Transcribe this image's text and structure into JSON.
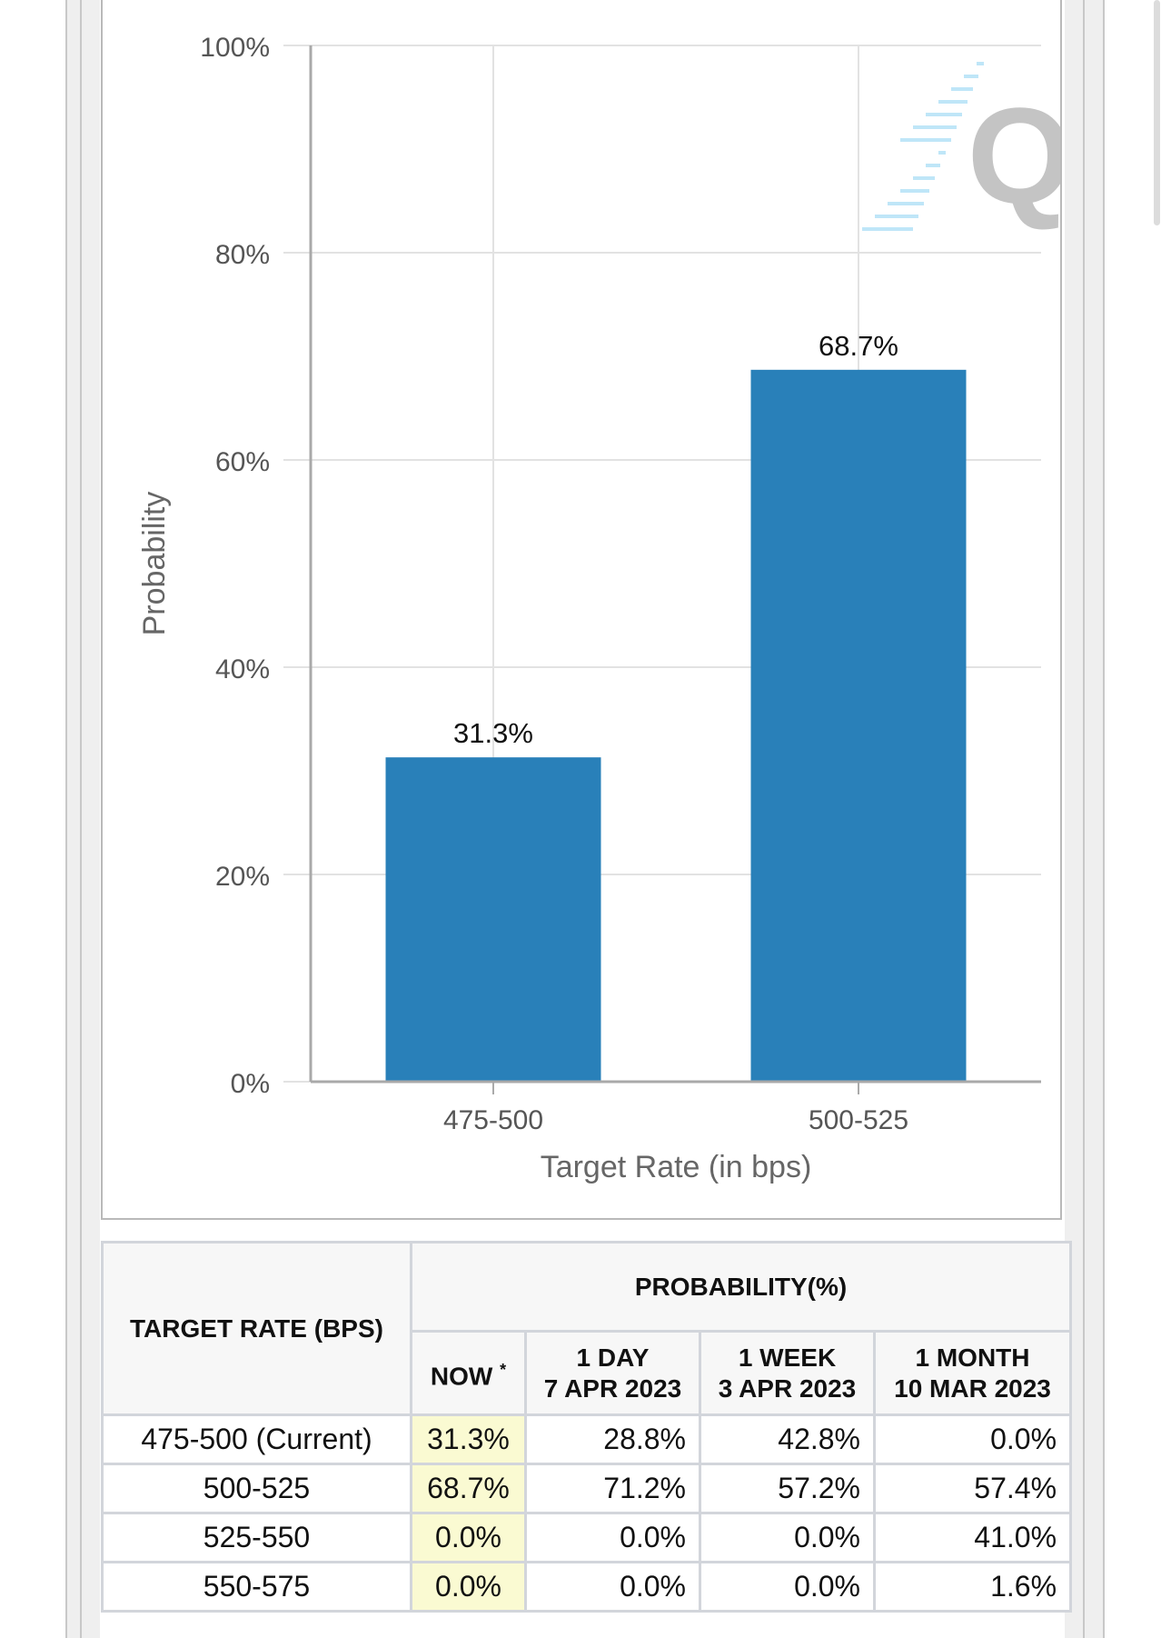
{
  "chart_data": {
    "type": "bar",
    "categories": [
      "475-500",
      "500-525"
    ],
    "values": [
      31.3,
      68.7
    ],
    "data_labels": [
      "31.3%",
      "68.7%"
    ],
    "xlabel": "Target Rate (in bps)",
    "ylabel": "Probability",
    "ylim": [
      0,
      100
    ],
    "yticks": [
      0,
      20,
      40,
      60,
      80,
      100
    ],
    "ytick_labels": [
      "0%",
      "20%",
      "40%",
      "60%",
      "80%",
      "100%"
    ],
    "grid": true,
    "legend": "none",
    "bar_color": "#2980b9",
    "watermark_icon": "q-logo-icon"
  },
  "table": {
    "header": {
      "target_rate": "TARGET RATE (BPS)",
      "probability": "PROBABILITY(%)",
      "now": "NOW",
      "now_marker": "*",
      "one_day": "1 DAY",
      "one_day_date": "7 APR 2023",
      "one_week": "1 WEEK",
      "one_week_date": "3 APR 2023",
      "one_month": "1 MONTH",
      "one_month_date": "10 MAR 2023"
    },
    "rows": [
      {
        "rate": "475-500 (Current)",
        "now": "31.3%",
        "day": "28.8%",
        "week": "42.8%",
        "month": "0.0%"
      },
      {
        "rate": "500-525",
        "now": "68.7%",
        "day": "71.2%",
        "week": "57.2%",
        "month": "57.4%"
      },
      {
        "rate": "525-550",
        "now": "0.0%",
        "day": "0.0%",
        "week": "0.0%",
        "month": "41.0%"
      },
      {
        "rate": "550-575",
        "now": "0.0%",
        "day": "0.0%",
        "week": "0.0%",
        "month": "1.6%"
      }
    ]
  },
  "colors": {
    "highlight_now": "#fafad2",
    "table_border": "#d2d5db",
    "grid": "#e2e2e2"
  }
}
